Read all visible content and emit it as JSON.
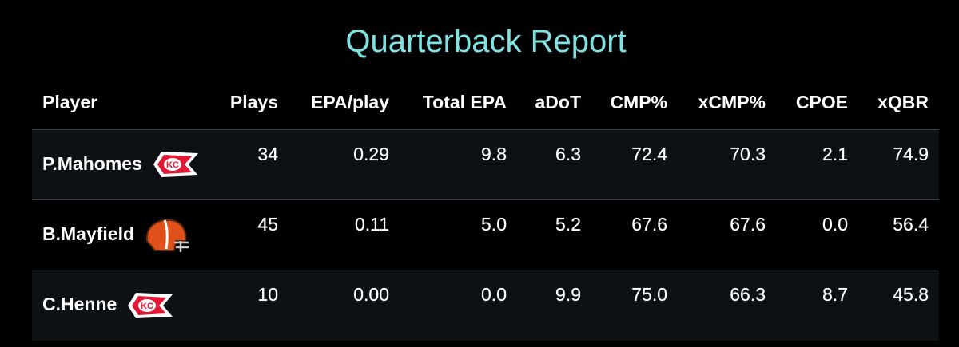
{
  "header": {
    "title": "Quarterback Report"
  },
  "table": {
    "columns": [
      "Player",
      "Plays",
      "EPA/play",
      "Total EPA",
      "aDoT",
      "CMP%",
      "xCMP%",
      "CPOE",
      "xQBR"
    ],
    "rows": [
      [
        "P.Mahomes",
        "34",
        "0.29",
        "9.8",
        "6.3",
        "72.4",
        "70.3",
        "2.1",
        "74.9"
      ],
      [
        "B.Mayfield",
        "45",
        "0.11",
        "5.0",
        "5.2",
        "67.6",
        "67.6",
        "0.0",
        "56.4"
      ],
      [
        "C.Henne",
        "10",
        "0.00",
        "0.0",
        "9.9",
        "75.0",
        "66.3",
        "8.7",
        "45.8"
      ]
    ]
  }
}
